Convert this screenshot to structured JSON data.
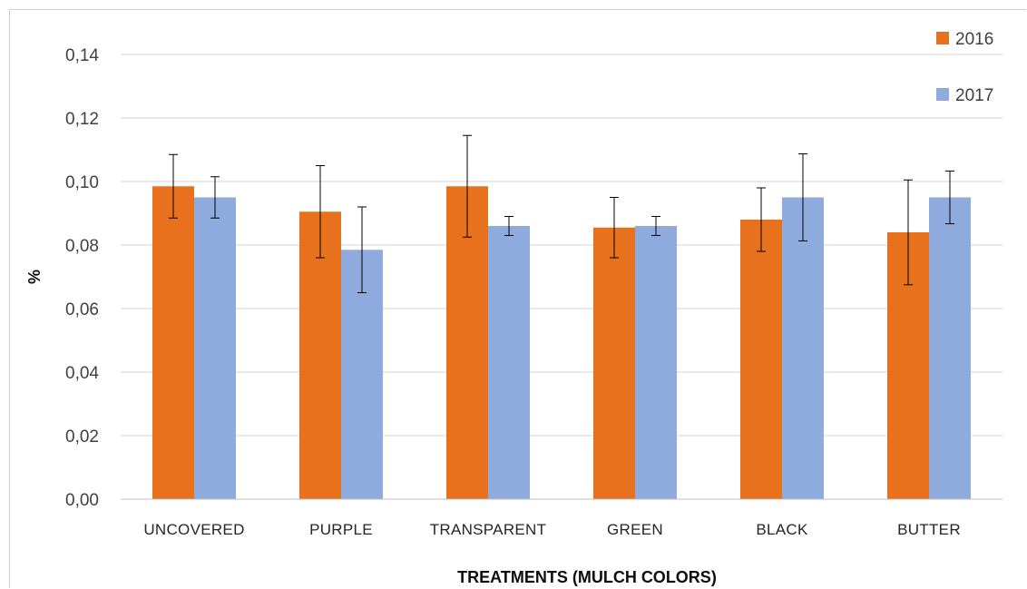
{
  "chart_data": {
    "type": "bar",
    "xlabel": "TREATMENTS (MULCH COLORS)",
    "ylabel": "%",
    "ylim": [
      0,
      0.14
    ],
    "yticks": [
      "0,00",
      "0,02",
      "0,04",
      "0,06",
      "0,08",
      "0,10",
      "0,12",
      "0,14"
    ],
    "grid": true,
    "legend_position": "top-right",
    "categories": [
      "UNCOVERED",
      "PURPLE",
      "TRANSPARENT",
      "GREEN",
      "BLACK",
      "BUTTER"
    ],
    "series": [
      {
        "name": "2016",
        "color": "#e8711e",
        "values": [
          0.0985,
          0.0905,
          0.0985,
          0.0855,
          0.088,
          0.084
        ],
        "error": [
          0.01,
          0.0145,
          0.016,
          0.0095,
          0.01,
          0.0165
        ]
      },
      {
        "name": "2017",
        "color": "#8faadc",
        "values": [
          0.095,
          0.0785,
          0.086,
          0.086,
          0.095,
          0.095
        ],
        "error": [
          0.0065,
          0.0135,
          0.003,
          0.003,
          0.0137,
          0.0083
        ]
      }
    ]
  }
}
